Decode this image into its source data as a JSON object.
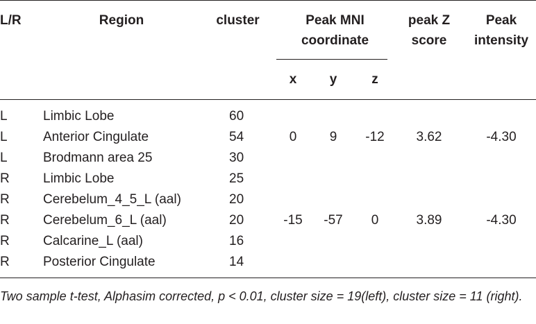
{
  "table": {
    "headers": {
      "lr": "L/R",
      "region": "Region",
      "cluster": "cluster",
      "peak_mni_1": "Peak MNI",
      "peak_mni_2": "coordinate",
      "x": "x",
      "y": "y",
      "z": "z",
      "peak_z_1": "peak Z",
      "peak_z_2": "score",
      "peak_int_1": "Peak",
      "peak_int_2": "intensity"
    },
    "rows": [
      {
        "lr": "L",
        "region": "Limbic Lobe",
        "cluster": "60"
      },
      {
        "lr": "L",
        "region": "Anterior Cingulate",
        "cluster": "54"
      },
      {
        "lr": "L",
        "region": "Brodmann area 25",
        "cluster": "30"
      },
      {
        "lr": "R",
        "region": "Limbic Lobe",
        "cluster": "25"
      },
      {
        "lr": "R",
        "region": "Cerebelum_4_5_L (aal)",
        "cluster": "20"
      },
      {
        "lr": "R",
        "region": "Cerebelum_6_L (aal)",
        "cluster": "20"
      },
      {
        "lr": "R",
        "region": "Calcarine_L (aal)",
        "cluster": "16"
      },
      {
        "lr": "R",
        "region": "Posterior Cingulate",
        "cluster": "14"
      }
    ],
    "peaks": [
      {
        "x": "0",
        "y": "9",
        "z": "-12",
        "z_score": "3.62",
        "intensity": "-4.30"
      },
      {
        "x": "-15",
        "y": "-57",
        "z": "0",
        "z_score": "3.89",
        "intensity": "-4.30"
      }
    ],
    "footnote": "Two sample t-test, Alphasim corrected, p < 0.01, cluster size = 19(left), cluster size = 11 (right)."
  }
}
